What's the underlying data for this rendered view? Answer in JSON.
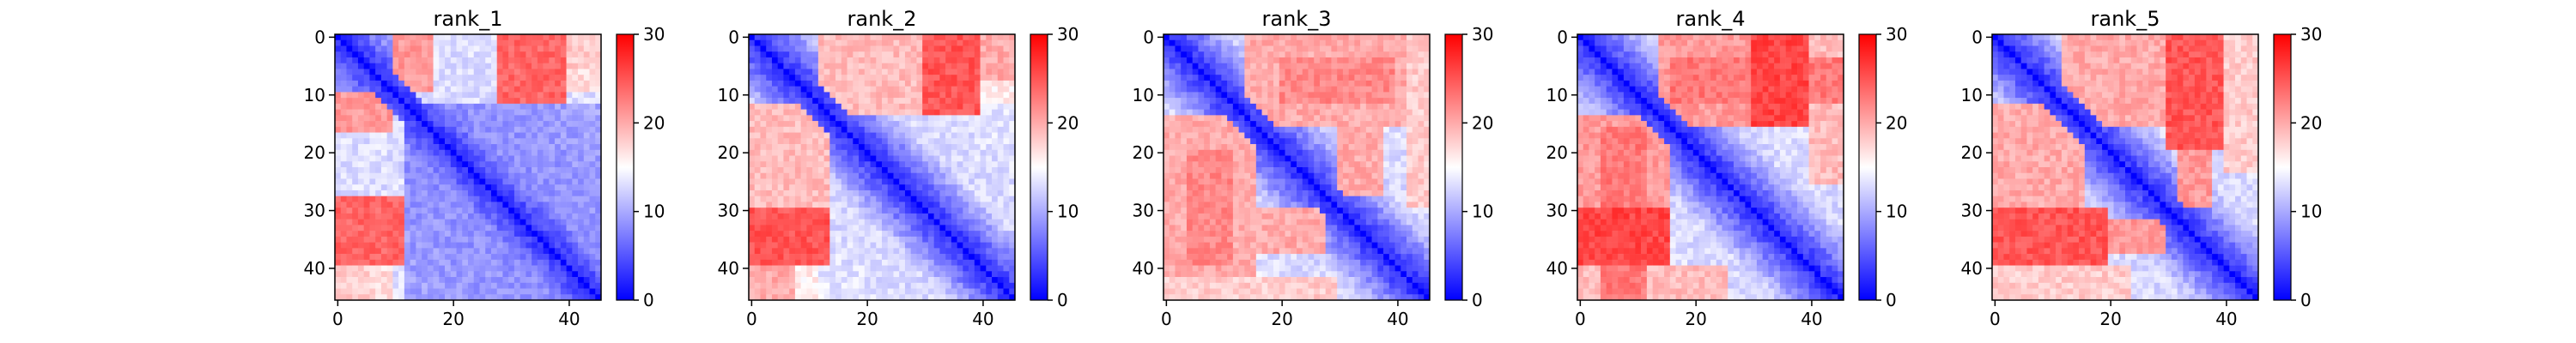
{
  "chart_data": {
    "type": "heatmap",
    "description_colormap": "bwr",
    "colormap": [
      "#0000ff",
      "#ffffff",
      "#ff0000"
    ],
    "color_range": [
      0,
      30
    ],
    "matrix_size": 46,
    "x_ticks": [
      0,
      20,
      40
    ],
    "y_ticks": [
      0,
      10,
      20,
      30,
      40
    ],
    "colorbar_ticks": [
      0,
      10,
      20,
      30
    ],
    "panels": [
      {
        "title": "rank_1",
        "base_offset": 8,
        "regions": [
          {
            "rows": [
              0,
              10
            ],
            "cols": [
              10,
              17
            ],
            "value": 21
          },
          {
            "rows": [
              0,
              12
            ],
            "cols": [
              28,
              40
            ],
            "value": 24
          },
          {
            "rows": [
              0,
              6
            ],
            "cols": [
              40,
              46
            ],
            "value": 18
          },
          {
            "rows": [
              12,
              46
            ],
            "cols": [
              0,
              12
            ],
            "value": 13
          },
          {
            "rows": [
              40,
              46
            ],
            "cols": [
              4,
              10
            ],
            "value": 17
          }
        ]
      },
      {
        "title": "rank_2",
        "base_offset": 12,
        "regions": [
          {
            "rows": [
              0,
              14
            ],
            "cols": [
              12,
              30
            ],
            "value": 19
          },
          {
            "rows": [
              0,
              14
            ],
            "cols": [
              30,
              40
            ],
            "value": 25
          },
          {
            "rows": [
              14,
              46
            ],
            "cols": [
              0,
              12
            ],
            "value": 16
          },
          {
            "rows": [
              36,
              46
            ],
            "cols": [
              0,
              8
            ],
            "value": 20
          }
        ]
      },
      {
        "title": "rank_3",
        "base_offset": 12,
        "regions": [
          {
            "rows": [
              0,
              16
            ],
            "cols": [
              14,
              42
            ],
            "value": 20
          },
          {
            "rows": [
              16,
              28
            ],
            "cols": [
              30,
              38
            ],
            "value": 20
          },
          {
            "rows": [
              14,
              46
            ],
            "cols": [
              0,
              14
            ],
            "value": 17
          },
          {
            "rows": [
              20,
              40
            ],
            "cols": [
              4,
              12
            ],
            "value": 22
          },
          {
            "rows": [
              42,
              46
            ],
            "cols": [
              0,
              30
            ],
            "value": 18
          }
        ]
      },
      {
        "title": "rank_4",
        "base_offset": 12,
        "regions": [
          {
            "rows": [
              0,
              16
            ],
            "cols": [
              14,
              30
            ],
            "value": 21
          },
          {
            "rows": [
              0,
              16
            ],
            "cols": [
              30,
              40
            ],
            "value": 26
          },
          {
            "rows": [
              16,
              46
            ],
            "cols": [
              4,
              12
            ],
            "value": 23
          },
          {
            "rows": [
              40,
              46
            ],
            "cols": [
              0,
              26
            ],
            "value": 19
          }
        ]
      },
      {
        "title": "rank_5",
        "base_offset": 12,
        "regions": [
          {
            "rows": [
              0,
              16
            ],
            "cols": [
              12,
              30
            ],
            "value": 20
          },
          {
            "rows": [
              0,
              20
            ],
            "cols": [
              30,
              40
            ],
            "value": 25
          },
          {
            "rows": [
              16,
              30
            ],
            "cols": [
              32,
              38
            ],
            "value": 21
          },
          {
            "rows": [
              14,
              46
            ],
            "cols": [
              0,
              12
            ],
            "value": 17
          },
          {
            "rows": [
              40,
              46
            ],
            "cols": [
              0,
              24
            ],
            "value": 18
          }
        ]
      }
    ]
  }
}
